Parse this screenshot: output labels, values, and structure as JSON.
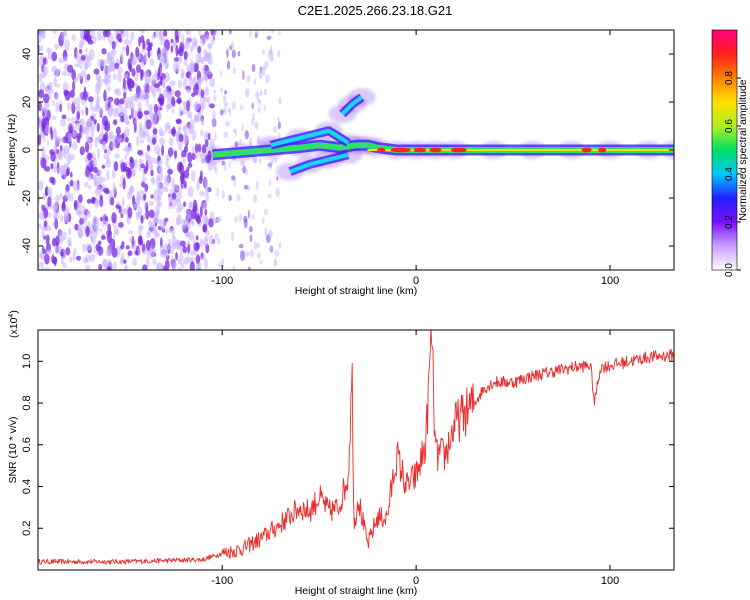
{
  "title": "C2E1.2025.266.23.18.G21",
  "colors": {
    "spectrogram_low": "#c9b3ff",
    "spectrogram_mid": "#7a2be2",
    "ridge_green": "#2ee06a",
    "ridge_cyan": "#18d8f0",
    "ridge_red": "#ff2020",
    "snr_line": "#ee2a2a"
  },
  "chart_data": [
    {
      "type": "heatmap",
      "name": "spectrogram",
      "xlabel": "Height of straight line (km)",
      "ylabel": "Frequency (Hz)",
      "xlim": [
        -195,
        133
      ],
      "ylim": [
        -50,
        50
      ],
      "xticks": [
        -100,
        0,
        100
      ],
      "xtick_labels": [
        "-100",
        "0",
        "100"
      ],
      "yticks": [
        -40,
        -20,
        0,
        20,
        40
      ],
      "ytick_labels": [
        "-40",
        "-20",
        "0",
        "20",
        "40"
      ],
      "noise_region_x": [
        -195,
        -105
      ],
      "ridge": {
        "x": [
          -105,
          -90,
          -75,
          -60,
          -50,
          -40,
          -30,
          -25,
          -20,
          -10,
          0,
          10,
          20,
          40,
          60,
          80,
          100,
          120,
          133
        ],
        "freq_hz": [
          -2,
          -1,
          0,
          1,
          2,
          1,
          2,
          2,
          1,
          0,
          0,
          0,
          0,
          0,
          0,
          0,
          0,
          0,
          0
        ]
      },
      "branches": [
        {
          "x": [
            -75,
            -60,
            -45,
            -35
          ],
          "freq_hz": [
            2,
            5,
            8,
            3
          ]
        },
        {
          "x": [
            -65,
            -55,
            -45,
            -35
          ],
          "freq_hz": [
            -9,
            -6,
            -4,
            -2
          ]
        },
        {
          "x": [
            -38,
            -33,
            -28
          ],
          "freq_hz": [
            15,
            19,
            22
          ]
        }
      ],
      "colorbar": {
        "label": "Normalized spectral amplitude",
        "range": [
          0,
          1
        ],
        "ticks": [
          0.0,
          0.2,
          0.4,
          0.6,
          0.8
        ],
        "tick_labels": [
          "0.0",
          "0.2",
          "0.4",
          "0.6",
          "0.8"
        ],
        "stops": [
          "#ffffff",
          "#c8a0ff",
          "#7a10ff",
          "#2020ff",
          "#00c8ff",
          "#00e060",
          "#b0f020",
          "#ffe000",
          "#ff8000",
          "#ff2020",
          "#ff0080"
        ]
      }
    },
    {
      "type": "line",
      "name": "snr",
      "xlabel": "Height of straight line (km)",
      "ylabel": "SNR (10 * v/v)",
      "multiplier_label": "(x10",
      "multiplier_exp": "4",
      "xlim": [
        -195,
        133
      ],
      "ylim": [
        0,
        1.15
      ],
      "xticks": [
        -100,
        0,
        100
      ],
      "xtick_labels": [
        "-100",
        "0",
        "100"
      ],
      "yticks": [
        0.2,
        0.4,
        0.6,
        0.8,
        1.0
      ],
      "ytick_labels": [
        "0.2",
        "0.4",
        "0.6",
        "0.8",
        "1.0"
      ],
      "series": [
        {
          "name": "SNR",
          "x": [
            -195,
            -150,
            -110,
            -100,
            -90,
            -80,
            -70,
            -60,
            -55,
            -50,
            -45,
            -40,
            -35,
            -33,
            -32,
            -30,
            -25,
            -20,
            -15,
            -10,
            -5,
            0,
            5,
            8,
            10,
            15,
            20,
            25,
            30,
            35,
            40,
            50,
            60,
            70,
            80,
            90,
            92,
            95,
            100,
            110,
            120,
            133
          ],
          "values": [
            0.04,
            0.04,
            0.05,
            0.08,
            0.1,
            0.15,
            0.22,
            0.3,
            0.28,
            0.35,
            0.28,
            0.3,
            0.45,
            0.95,
            0.2,
            0.35,
            0.12,
            0.25,
            0.25,
            0.55,
            0.4,
            0.45,
            0.6,
            1.15,
            0.55,
            0.55,
            0.7,
            0.75,
            0.8,
            0.87,
            0.9,
            0.9,
            0.93,
            0.95,
            0.97,
            0.98,
            0.8,
            0.97,
            0.98,
            1.0,
            1.02,
            1.03
          ]
        }
      ]
    }
  ]
}
